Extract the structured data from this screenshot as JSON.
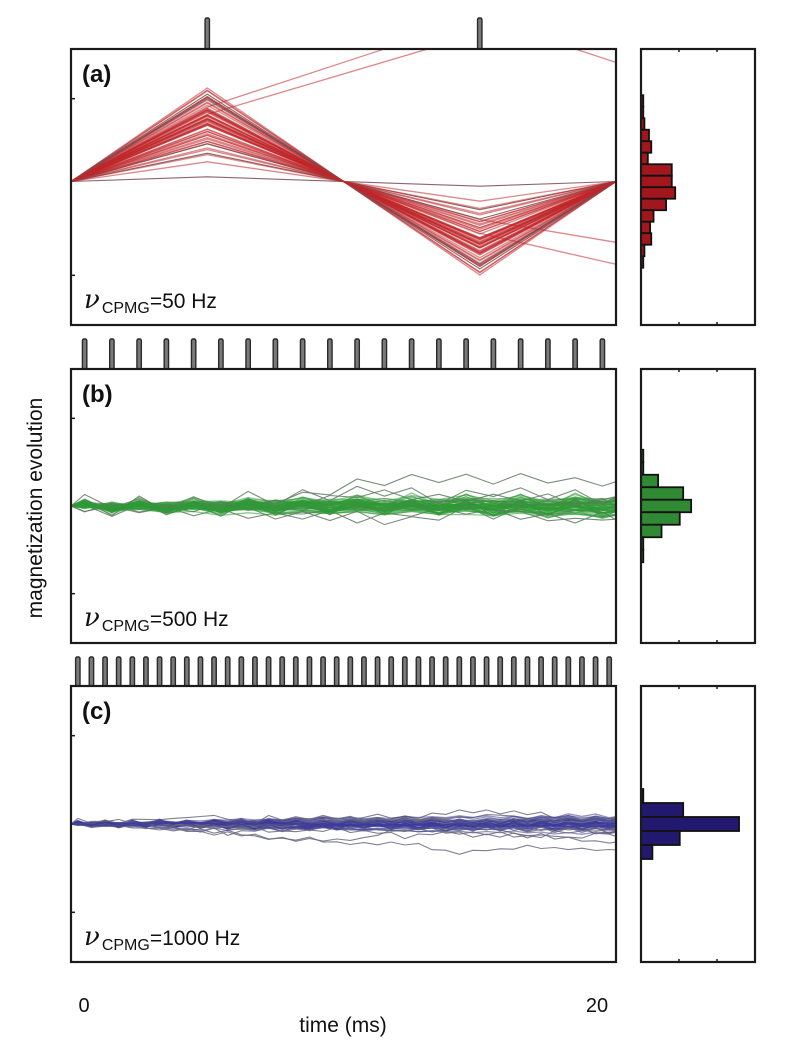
{
  "chart_data": {
    "type": "line",
    "description": "Simulated magnetization evolution under CPMG pulse trains with histograms of final values",
    "xlabel": "time (ms)",
    "ylabel": "magnetization evolution",
    "x_ticks": [
      "0",
      "20"
    ],
    "xlim": [
      0,
      20
    ],
    "grid": false,
    "panels": [
      {
        "id": "a",
        "label": "(a)",
        "frequency_prefix": "ν",
        "frequency_subscript": "CPMG",
        "frequency_value": "=50 Hz",
        "nu_cpmg_hz": 50,
        "pulse_count": 2,
        "pulse_times_ms": [
          5,
          15
        ],
        "color": "#c0262a",
        "outlier_color": "#7a4a4e",
        "trajectory_count": 60,
        "spread": 1.0,
        "histogram": {
          "color": "#a3171c",
          "bins": [
            0.02,
            0.02,
            0.03,
            0.07,
            0.09,
            0.06,
            0.27,
            0.27,
            0.3,
            0.22,
            0.11,
            0.08,
            0.09,
            0.03,
            0.02
          ],
          "center_fraction": 0.48
        }
      },
      {
        "id": "b",
        "label": "(b)",
        "frequency_prefix": "ν",
        "frequency_subscript": "CPMG",
        "frequency_value": "=500 Hz",
        "nu_cpmg_hz": 500,
        "pulse_count": 20,
        "color": "#2e9a34",
        "outlier_color": "#5f7a60",
        "trajectory_count": 60,
        "spread": 0.45,
        "histogram": {
          "color": "#2f8a33",
          "bins": [
            0.02,
            0.02,
            0.15,
            0.37,
            0.44,
            0.34,
            0.18,
            0.02,
            0.02
          ],
          "center_fraction": 0.5
        }
      },
      {
        "id": "c",
        "label": "(c)",
        "frequency_prefix": "ν",
        "frequency_subscript": "CPMG",
        "frequency_value": "=1000 Hz",
        "nu_cpmg_hz": 1000,
        "pulse_count": 40,
        "color": "#3d3a9a",
        "outlier_color": "#6a6a7e",
        "trajectory_count": 50,
        "spread": 0.22,
        "histogram": {
          "color": "#22196e",
          "bins": [
            0.02,
            0.37,
            0.86,
            0.34,
            0.1
          ],
          "center_fraction": 0.5
        }
      }
    ]
  }
}
